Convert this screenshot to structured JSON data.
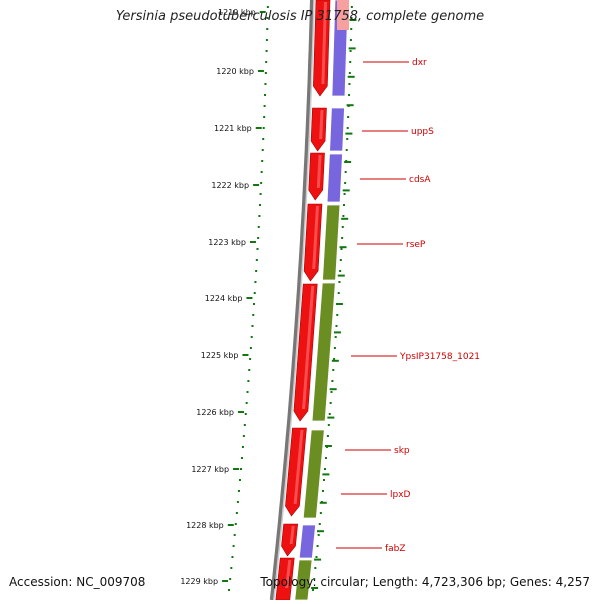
{
  "title": "Yersinia pseudotuberculosis IP 31758, complete genome",
  "accession_text": "Accession: NC_009708",
  "topology_text": "Topology: circular; Length: 4,723,306 bp; Genes: 4,257",
  "colors": {
    "gene_red": "#ee1111",
    "purple": "#7766dd",
    "olive": "#6b8e23",
    "gene_label": "#cc0000",
    "tick_green": "#117711",
    "backbone": "#888888"
  },
  "kbp_labels": [
    "1219 kbp",
    "1220 kbp",
    "1221 kbp",
    "1222 kbp",
    "1223 kbp",
    "1224 kbp",
    "1225 kbp",
    "1226 kbp",
    "1227 kbp",
    "1228 kbp",
    "1229 kbp"
  ],
  "genes": [
    {
      "name": "dxr"
    },
    {
      "name": "uppS"
    },
    {
      "name": "cdsA"
    },
    {
      "name": "rseP"
    },
    {
      "name": "YpsIP31758_1021"
    },
    {
      "name": "skp"
    },
    {
      "name": "lpxD"
    },
    {
      "name": "fabZ"
    }
  ]
}
